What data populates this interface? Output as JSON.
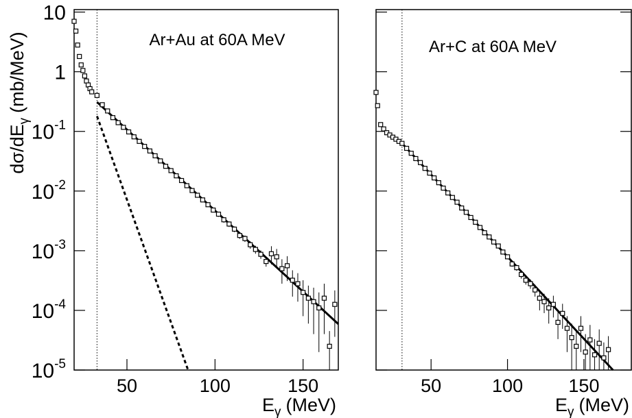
{
  "chart_data": [
    {
      "type": "scatter",
      "annotation": "Ar+Au at 60A MeV",
      "ylabel": {
        "text": "dσ/dE",
        "sub": "γ",
        "rest": "(mb/MeV)"
      },
      "xlabel": {
        "text": "E",
        "sub": "γ",
        "rest": "(MeV)"
      },
      "log_y": true,
      "color": "#000000",
      "threshold": 33,
      "xlim": [
        20,
        170
      ],
      "xticks": [
        50,
        100,
        150
      ],
      "ylim": [
        1e-05,
        11
      ],
      "yticks": [
        {
          "value": 1e-05,
          "label": "10",
          "exponent": "-5"
        },
        {
          "value": 0.0001,
          "label": "10",
          "exponent": "-4"
        },
        {
          "value": 0.001,
          "label": "10",
          "exponent": "-3"
        },
        {
          "value": 0.01,
          "label": "10",
          "exponent": "-2"
        },
        {
          "value": 0.1,
          "label": "10",
          "exponent": "-1"
        },
        1,
        10
      ],
      "x": [
        20,
        21,
        22,
        23,
        24,
        25,
        26,
        27,
        28,
        29,
        30,
        33,
        36,
        39,
        42,
        45,
        48,
        51,
        54,
        57,
        60,
        63,
        66,
        69,
        72,
        75,
        78,
        81,
        84,
        87,
        90,
        93,
        96,
        99,
        102,
        105,
        108,
        111,
        114,
        117,
        120,
        123,
        126,
        129,
        132,
        135,
        138,
        141,
        144,
        147,
        150,
        153,
        156,
        159,
        162,
        165,
        168
      ],
      "values": [
        7,
        4.8,
        2.8,
        1.8,
        1.3,
        1.05,
        0.85,
        0.7,
        0.6,
        0.52,
        0.46,
        0.4,
        0.28,
        0.22,
        0.17,
        0.14,
        0.117,
        0.098,
        0.081,
        0.068,
        0.056,
        0.047,
        0.039,
        0.032,
        0.026,
        0.022,
        0.018,
        0.015,
        0.0123,
        0.0102,
        0.0085,
        0.0071,
        0.0059,
        0.0048,
        0.0041,
        0.0033,
        0.0028,
        0.0023,
        0.0018,
        0.0016,
        0.00126,
        0.00105,
        0.00087,
        0.00066,
        0.00089,
        0.00079,
        0.0005,
        0.00056,
        0.00032,
        0.00028,
        0.0002,
        0.00016,
        0.00014,
        0.00011,
        0.00016,
        2.5e-05,
        0.000126
      ],
      "errors": [
        0.1,
        0.08,
        0.05,
        0.03,
        0.02,
        0.02,
        0.015,
        0.012,
        0.01,
        0.01,
        0.008,
        0.012,
        0.008,
        0.006,
        0.005,
        0.004,
        0.0035,
        0.003,
        0.0025,
        0.002,
        0.0017,
        0.0014,
        0.0012,
        0.001,
        0.0008,
        0.0007,
        0.0006,
        0.0005,
        0.0004,
        0.0003,
        0.00026,
        0.00022,
        0.00018,
        0.00015,
        0.0004,
        0.00035,
        0.0003,
        0.00025,
        0.00022,
        0.0002,
        0.00018,
        0.00016,
        0.00014,
        0.00012,
        0.0003,
        0.00028,
        0.00022,
        0.00025,
        0.00015,
        0.00014,
        0.00012,
        0.0001,
        0.0001,
        9e-05,
        0.00012,
        2e-05,
        9e-05
      ],
      "fits": [
        {
          "style": "solid",
          "x": [
            33,
            170
          ],
          "values": [
            0.31,
            5.9e-05
          ]
        },
        {
          "style": "dashed",
          "x": [
            33,
            84.7
          ],
          "values": [
            0.18,
            1e-05
          ]
        }
      ]
    },
    {
      "type": "scatter",
      "annotation": "Ar+C at 60A MeV",
      "xlabel": {
        "text": "E",
        "sub": "γ",
        "rest": "(MeV)"
      },
      "log_y": true,
      "color": "#000000",
      "threshold": 31,
      "xlim": [
        14,
        181
      ],
      "xticks": [
        50,
        100,
        150
      ],
      "ylim": [
        1e-05,
        11
      ],
      "yticks": [
        1e-05,
        0.0001,
        0.001,
        0.01,
        0.1,
        1,
        10
      ],
      "x": [
        14,
        15,
        17,
        19,
        21,
        23,
        25,
        27,
        29,
        31,
        34,
        37,
        40,
        43,
        46,
        49,
        52,
        55,
        58,
        61,
        64,
        67,
        70,
        73,
        76,
        79,
        82,
        85,
        88,
        91,
        94,
        97,
        100,
        103,
        106,
        109,
        112,
        115,
        118,
        121,
        124,
        127,
        130,
        133,
        136,
        139,
        142,
        145,
        148,
        151,
        154,
        157,
        160,
        163,
        166
      ],
      "values": [
        0.45,
        0.27,
        0.13,
        0.11,
        0.095,
        0.087,
        0.08,
        0.074,
        0.068,
        0.063,
        0.052,
        0.043,
        0.035,
        0.03,
        0.024,
        0.02,
        0.0166,
        0.0138,
        0.0112,
        0.0093,
        0.0078,
        0.0065,
        0.0052,
        0.0044,
        0.0036,
        0.003,
        0.00245,
        0.002,
        0.0017,
        0.0014,
        0.0012,
        0.00095,
        0.00079,
        0.0006,
        0.00052,
        0.0004,
        0.00032,
        0.00028,
        0.00022,
        0.00016,
        0.00014,
        0.00011,
        0.000126,
        6.3e-05,
        8.9e-05,
        5e-05,
        3.5e-05,
        2.5e-05,
        5e-05,
        2e-05,
        3.2e-05,
        1.8e-05,
        2.8e-05,
        1.6e-05,
        2.2e-05
      ],
      "errors": [
        0.01,
        0.008,
        0.004,
        0.003,
        0.002,
        0.002,
        0.0018,
        0.0016,
        0.0015,
        0.0013,
        0.0011,
        0.0009,
        0.00075,
        0.00065,
        0.00052,
        0.00045,
        0.00037,
        0.0003,
        0.00025,
        0.00021,
        0.00018,
        0.00015,
        0.00012,
        0.0001,
        9e-05,
        7.5e-05,
        7e-05,
        6e-05,
        5e-05,
        7e-05,
        7e-05,
        7e-05,
        7e-05,
        6e-05,
        6e-05,
        6e-05,
        5e-05,
        5e-05,
        5e-05,
        6e-05,
        5e-05,
        5e-05,
        5e-05,
        3e-05,
        4e-05,
        3e-05,
        2.5e-05,
        2e-05,
        3e-05,
        2e-05,
        2.5e-05,
        1.5e-05,
        2e-05,
        1.3e-05,
        1.5e-05
      ],
      "fits": [
        {
          "style": "solid",
          "x": [
            31,
            169
          ],
          "values": [
            0.063,
            1e-05
          ]
        }
      ]
    }
  ]
}
